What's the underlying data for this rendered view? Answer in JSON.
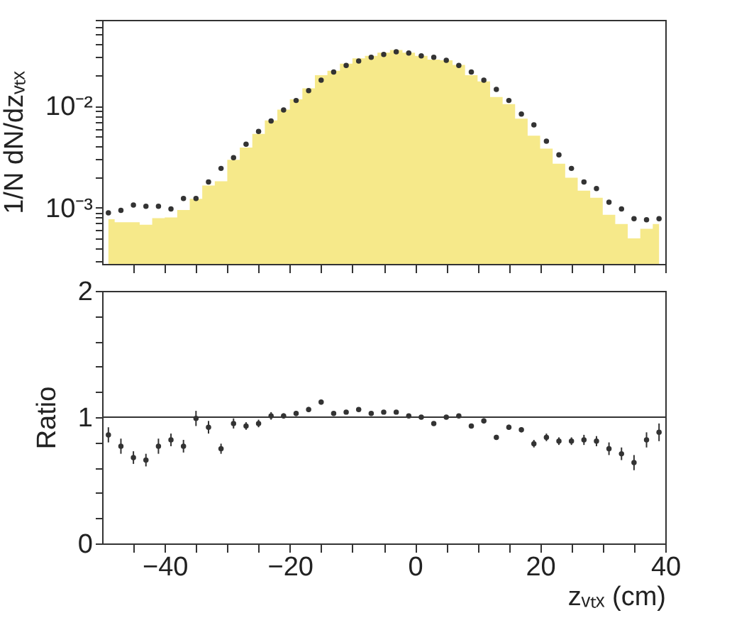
{
  "chart_data": [
    {
      "type": "scatter",
      "ylabel": "1/N dN/dzᵥₜₓ",
      "log": true,
      "tick_labels": "y",
      "xlim": [
        -50,
        40
      ],
      "xticks": [
        {
          "value": -45,
          "label": null
        },
        {
          "value": -40,
          "label": null
        },
        {
          "value": -35,
          "label": null
        },
        {
          "value": -30,
          "label": null
        },
        {
          "value": -25,
          "label": null
        },
        {
          "value": -20,
          "label": null
        },
        {
          "value": -15,
          "label": null
        },
        {
          "value": -10,
          "label": null
        },
        {
          "value": -5,
          "label": null
        },
        {
          "value": 0,
          "label": null
        },
        {
          "value": 5,
          "label": null
        },
        {
          "value": 10,
          "label": null
        },
        {
          "value": 15,
          "label": null
        },
        {
          "value": 20,
          "label": null
        },
        {
          "value": 25,
          "label": null
        },
        {
          "value": 30,
          "label": null
        },
        {
          "value": 35,
          "label": null
        },
        {
          "value": 40,
          "label": null
        }
      ],
      "ylim": [
        0.00028,
        0.07
      ],
      "yticks": [
        {
          "value": 0.0003,
          "label": null
        },
        {
          "value": 0.0004,
          "label": null
        },
        {
          "value": 0.0005,
          "label": null
        },
        {
          "value": 0.0006,
          "label": null
        },
        {
          "value": 0.0007,
          "label": null
        },
        {
          "value": 0.0008,
          "label": null
        },
        {
          "value": 0.0009,
          "label": null
        },
        {
          "value": 0.001,
          "label": "10⁻³"
        },
        {
          "value": 0.002,
          "label": null
        },
        {
          "value": 0.003,
          "label": null
        },
        {
          "value": 0.004,
          "label": null
        },
        {
          "value": 0.005,
          "label": null
        },
        {
          "value": 0.006,
          "label": null
        },
        {
          "value": 0.007,
          "label": null
        },
        {
          "value": 0.008,
          "label": null
        },
        {
          "value": 0.009,
          "label": null
        },
        {
          "value": 0.01,
          "label": "10⁻²"
        },
        {
          "value": 0.02,
          "label": null
        },
        {
          "value": 0.03,
          "label": null
        },
        {
          "value": 0.04,
          "label": null
        },
        {
          "value": 0.05,
          "label": null
        },
        {
          "value": 0.06,
          "label": null
        },
        {
          "value": 0.07,
          "label": null
        }
      ],
      "x": [
        -49,
        -47,
        -45,
        -43,
        -41,
        -39,
        -37,
        -35,
        -33,
        -31,
        -29,
        -27,
        -25,
        -23,
        -21,
        -19,
        -17,
        -15,
        -13,
        -11,
        -9,
        -7,
        -5,
        -3,
        -1,
        1,
        3,
        5,
        7,
        9,
        11,
        13,
        15,
        17,
        19,
        21,
        23,
        25,
        27,
        29,
        31,
        33,
        35,
        37,
        39
      ],
      "series": [
        {
          "type": "area",
          "color": "#f6e98a",
          "values": [
            0.00077,
            0.00072,
            0.00072,
            0.00068,
            0.00079,
            0.0008,
            0.00095,
            0.00122,
            0.00165,
            0.00182,
            0.00295,
            0.0039,
            0.0053,
            0.0072,
            0.0092,
            0.0116,
            0.0149,
            0.02,
            0.0221,
            0.026,
            0.0293,
            0.031,
            0.0333,
            0.0354,
            0.0333,
            0.031,
            0.0285,
            0.028,
            0.0253,
            0.02,
            0.0174,
            0.0122,
            0.0104,
            0.0075,
            0.0051,
            0.0038,
            0.0027,
            0.00197,
            0.00147,
            0.00125,
            0.00085,
            0.00069,
            0.0005,
            0.00062,
            0.00069
          ]
        },
        {
          "type": "scatter",
          "color": "#333333",
          "marker": "circle",
          "values": [
            0.00089,
            0.00094,
            0.00106,
            0.00103,
            0.00103,
            0.00097,
            0.00123,
            0.00123,
            0.00179,
            0.00243,
            0.0031,
            0.0042,
            0.0056,
            0.0071,
            0.0091,
            0.0113,
            0.0141,
            0.0179,
            0.0215,
            0.025,
            0.0276,
            0.03,
            0.032,
            0.034,
            0.033,
            0.031,
            0.03,
            0.028,
            0.025,
            0.0215,
            0.0179,
            0.0145,
            0.0113,
            0.0083,
            0.0065,
            0.0045,
            0.0033,
            0.00243,
            0.00179,
            0.00154,
            0.00113,
            0.00097,
            0.00078,
            0.00076,
            0.00078
          ]
        }
      ]
    },
    {
      "type": "scatter",
      "xlabel": "zᵥₜₓ (cm)",
      "ylabel": "Ratio",
      "color": "#333333",
      "marker": "circle",
      "xlim": [
        -50,
        40
      ],
      "xticks": [
        {
          "value": -45,
          "label": null
        },
        {
          "value": -40,
          "label": "−40"
        },
        {
          "value": -35,
          "label": null
        },
        {
          "value": -30,
          "label": null
        },
        {
          "value": -25,
          "label": null
        },
        {
          "value": -20,
          "label": "−20"
        },
        {
          "value": -15,
          "label": null
        },
        {
          "value": -10,
          "label": null
        },
        {
          "value": -5,
          "label": null
        },
        0,
        {
          "value": 5,
          "label": null
        },
        {
          "value": 10,
          "label": null
        },
        {
          "value": 15,
          "label": null
        },
        20,
        {
          "value": 25,
          "label": null
        },
        {
          "value": 30,
          "label": null
        },
        {
          "value": 35,
          "label": null
        },
        40
      ],
      "ylim": [
        0,
        2
      ],
      "yticks": [
        0,
        {
          "value": 0.2,
          "label": null
        },
        {
          "value": 0.4,
          "label": null
        },
        {
          "value": 0.6,
          "label": null
        },
        {
          "value": 0.8,
          "label": null
        },
        1,
        {
          "value": 1.2,
          "label": null
        },
        {
          "value": 1.4,
          "label": null
        },
        {
          "value": 1.6,
          "label": null
        },
        {
          "value": 1.8,
          "label": null
        },
        2
      ],
      "ref_lines": [
        {
          "axis": "y",
          "value": 1,
          "color": "#333333"
        }
      ],
      "x": [
        -49,
        -47,
        -45,
        -43,
        -41,
        -39,
        -37,
        -35,
        -33,
        -31,
        -29,
        -27,
        -25,
        -23,
        -21,
        -19,
        -17,
        -15,
        -13,
        -11,
        -9,
        -7,
        -5,
        -3,
        -1,
        1,
        3,
        5,
        7,
        9,
        11,
        13,
        15,
        17,
        19,
        21,
        23,
        25,
        27,
        29,
        31,
        33,
        35,
        37,
        39
      ],
      "values": [
        0.86,
        0.77,
        0.68,
        0.66,
        0.77,
        0.82,
        0.77,
        0.99,
        0.92,
        0.75,
        0.95,
        0.93,
        0.95,
        1.01,
        1.01,
        1.03,
        1.06,
        1.12,
        1.03,
        1.04,
        1.06,
        1.03,
        1.04,
        1.04,
        1.01,
        1.0,
        0.95,
        1.0,
        1.01,
        0.93,
        0.97,
        0.84,
        0.92,
        0.9,
        0.79,
        0.84,
        0.81,
        0.81,
        0.82,
        0.81,
        0.75,
        0.71,
        0.64,
        0.82,
        0.88
      ],
      "errors": [
        0.06,
        0.06,
        0.05,
        0.05,
        0.06,
        0.05,
        0.05,
        0.06,
        0.05,
        0.04,
        0.04,
        0.03,
        0.03,
        0.03,
        0.02,
        0.02,
        0.02,
        0.02,
        0.01,
        0.01,
        0.01,
        0.01,
        0.01,
        0.01,
        0.01,
        0.01,
        0.01,
        0.01,
        0.01,
        0.01,
        0.02,
        0.02,
        0.02,
        0.02,
        0.03,
        0.03,
        0.03,
        0.03,
        0.04,
        0.04,
        0.05,
        0.05,
        0.06,
        0.06,
        0.07
      ]
    }
  ]
}
